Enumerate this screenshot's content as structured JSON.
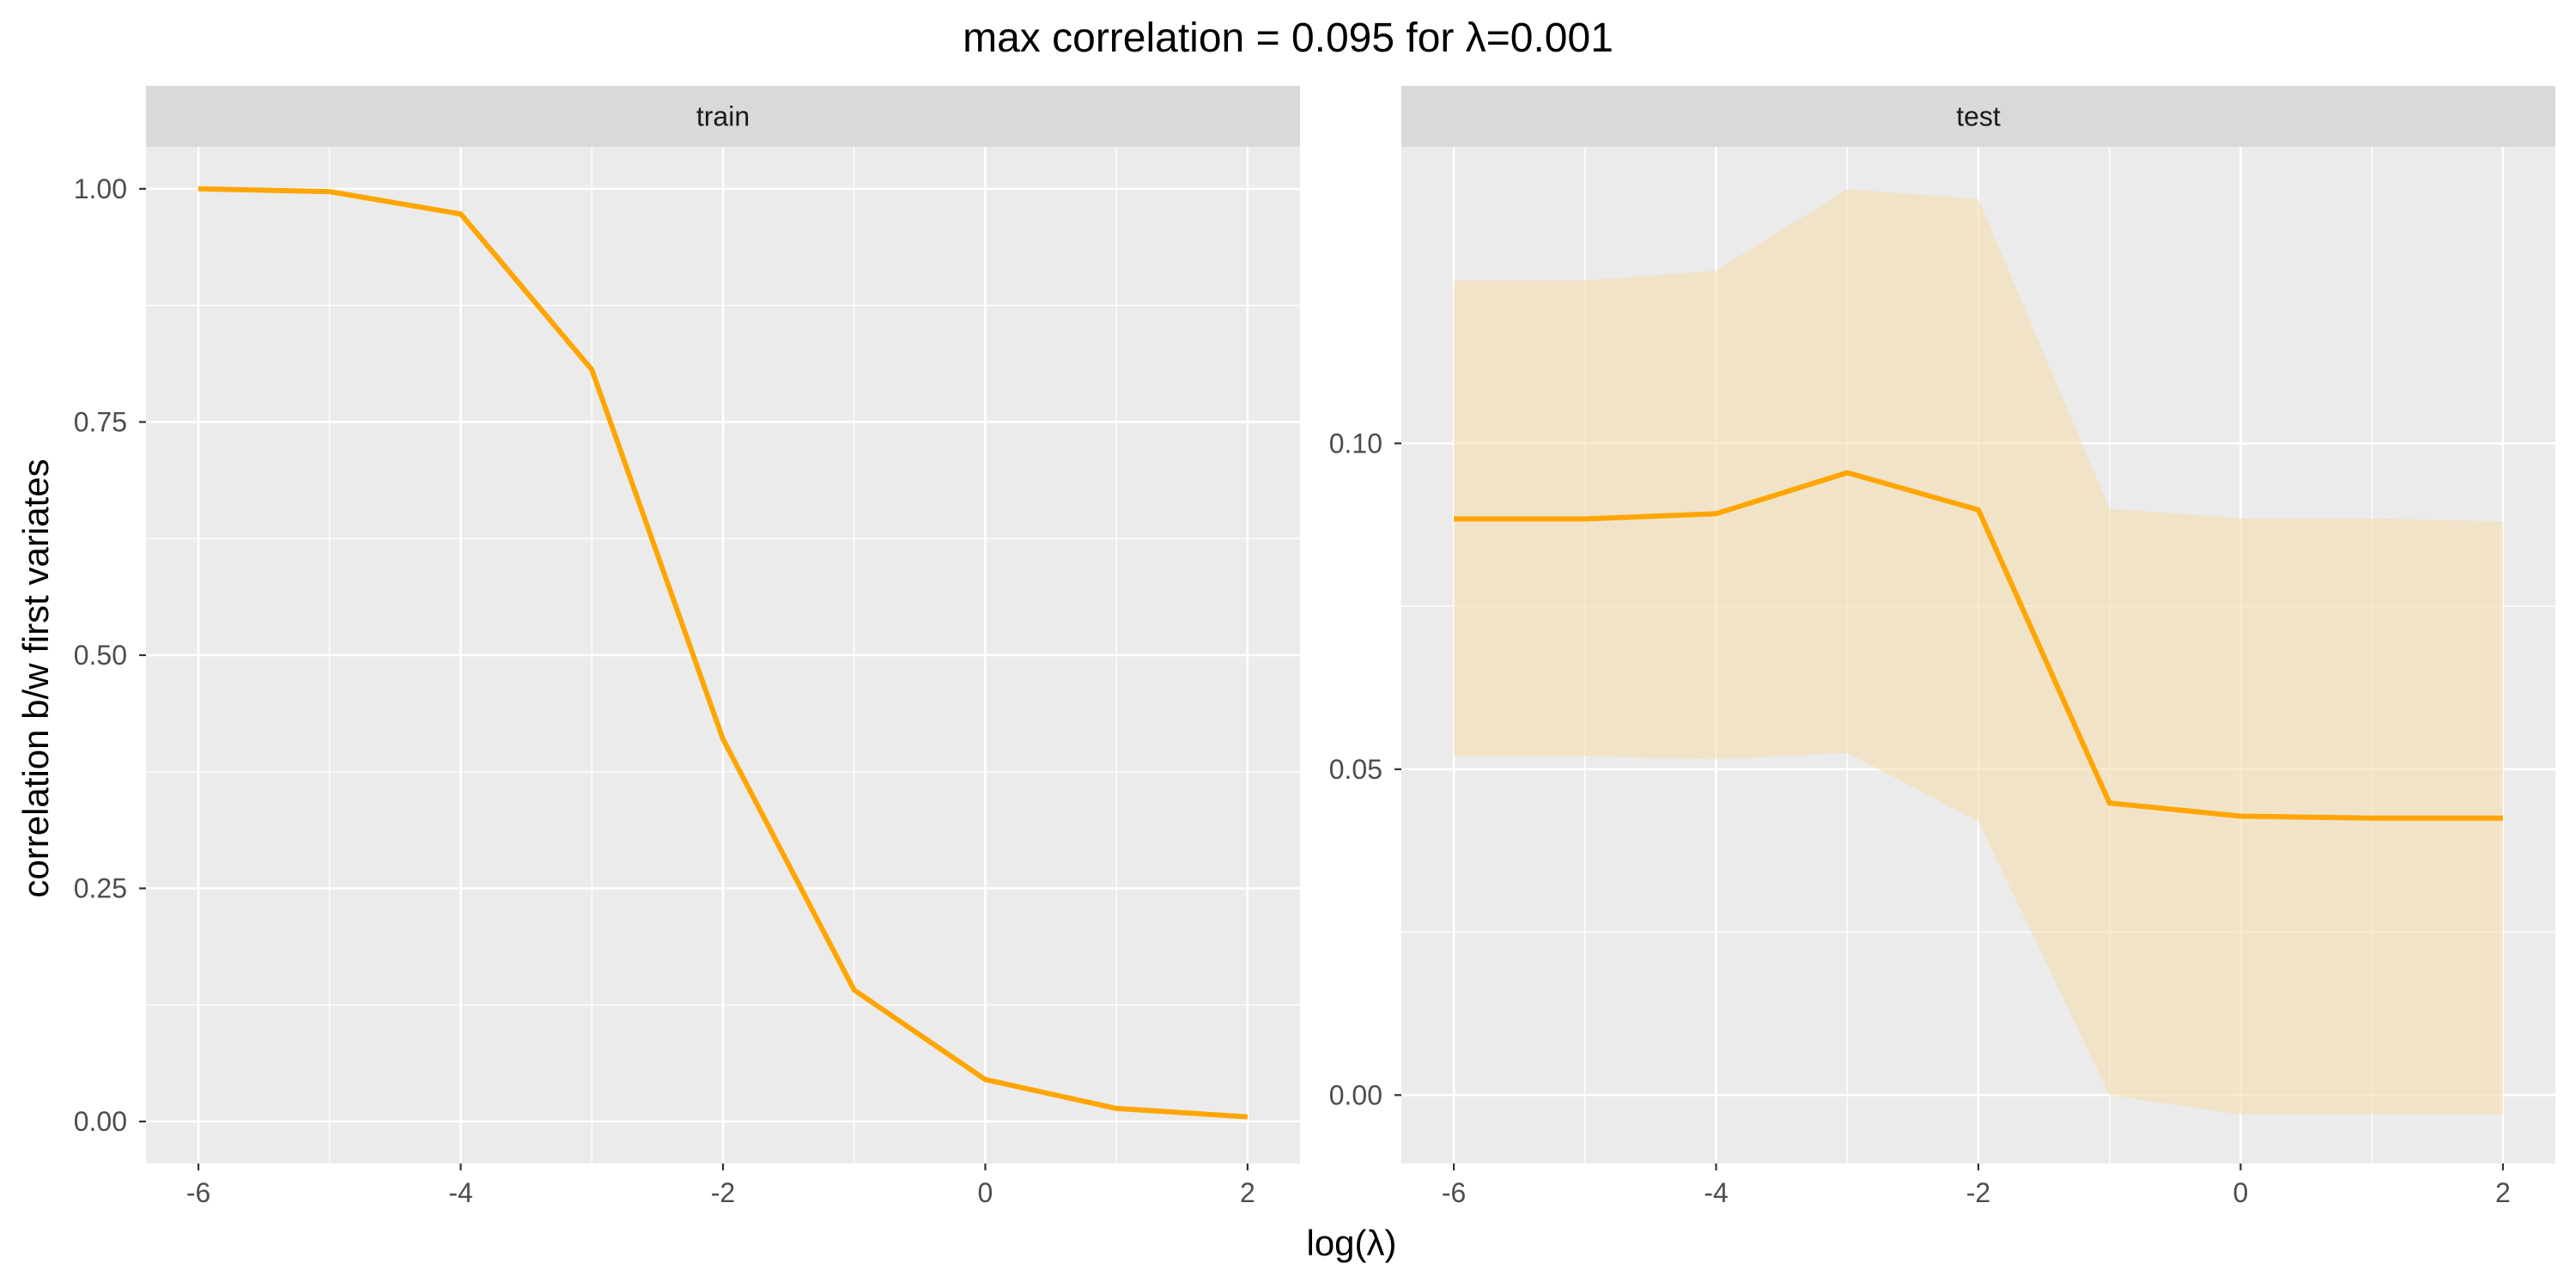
{
  "chart_title": "max correlation = 0.095  for  λ=0.001",
  "xlabel": "log(λ)",
  "ylabel": "correlation b/w first variates",
  "colors": {
    "line": "#FFA500",
    "ribbon": "#F4DDB0",
    "panel_bg": "#EBEBEB",
    "strip_bg": "#D9D9D9",
    "grid": "#FFFFFF"
  },
  "chart_data": [
    {
      "type": "line",
      "panel": "train",
      "x": [
        -6,
        -5,
        -4,
        -3,
        -2,
        -1,
        0,
        1,
        2
      ],
      "series": [
        {
          "values": [
            1.0,
            0.997,
            0.973,
            0.806,
            0.41,
            0.141,
            0.045,
            0.014,
            0.005
          ]
        }
      ],
      "xlim": [
        -6.4,
        2.4
      ],
      "ylim": [
        -0.045,
        1.045
      ],
      "xticks": [
        -6,
        -4,
        -2,
        0,
        2
      ],
      "xtick_labels": [
        "-6",
        "-4",
        "-2",
        "0",
        "2"
      ],
      "yticks": [
        0.0,
        0.25,
        0.5,
        0.75,
        1.0
      ],
      "ytick_labels": [
        "0.00",
        "0.25",
        "0.50",
        "0.75",
        "1.00"
      ],
      "grid": true
    },
    {
      "type": "area",
      "panel": "test",
      "x": [
        -6,
        -5,
        -4,
        -3,
        -2,
        -1,
        0,
        1,
        2
      ],
      "series": [
        {
          "values": [
            0.0884,
            0.0884,
            0.0892,
            0.0955,
            0.0898,
            0.0448,
            0.0428,
            0.0425,
            0.0425
          ]
        }
      ],
      "ribbon_upper": [
        0.125,
        0.125,
        0.1265,
        0.139,
        0.1375,
        0.09,
        0.0885,
        0.0885,
        0.088
      ],
      "ribbon_lower": [
        0.052,
        0.052,
        0.0515,
        0.0525,
        0.042,
        0.0,
        -0.003,
        -0.003,
        -0.003
      ],
      "xlim": [
        -6.4,
        2.4
      ],
      "ylim": [
        -0.0105,
        0.1455
      ],
      "xticks": [
        -6,
        -4,
        -2,
        0,
        2
      ],
      "xtick_labels": [
        "-6",
        "-4",
        "-2",
        "0",
        "2"
      ],
      "yticks": [
        0.0,
        0.05,
        0.1
      ],
      "ytick_labels": [
        "0.00",
        "0.05",
        "0.10"
      ],
      "grid": true
    }
  ]
}
